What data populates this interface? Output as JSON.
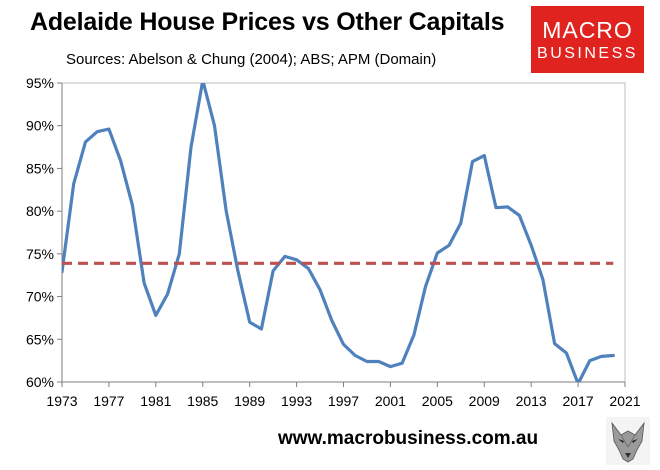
{
  "title": "Adelaide House Prices vs Other Capitals",
  "subtitle": "Sources: Abelson & Chung (2004); ABS; APM (Domain)",
  "logo": {
    "line1": "MACRO",
    "line2": "BUSINESS",
    "color": "#e1231f"
  },
  "footer": {
    "url": "www.macrobusiness.com.au"
  },
  "colors": {
    "series": "#4f81bd",
    "average": "#c0504d",
    "axis": "#7f7f7f"
  },
  "chart_data": {
    "type": "line",
    "title": "Adelaide House Prices vs Other Capitals",
    "xlabel": "",
    "ylabel": "",
    "xlim": [
      1973,
      2021
    ],
    "ylim": [
      0.6,
      0.95
    ],
    "x_ticks": [
      1973,
      1977,
      1981,
      1985,
      1989,
      1993,
      1997,
      2001,
      2005,
      2009,
      2013,
      2017,
      2021
    ],
    "y_ticks": [
      0.6,
      0.65,
      0.7,
      0.75,
      0.8,
      0.85,
      0.9,
      0.95
    ],
    "x_tick_labels": [
      "1973",
      "1977",
      "1981",
      "1985",
      "1989",
      "1993",
      "1997",
      "2001",
      "2005",
      "2009",
      "2013",
      "2017",
      "2021"
    ],
    "y_tick_labels": [
      "60%",
      "65%",
      "70%",
      "75%",
      "80%",
      "85%",
      "90%",
      "95%"
    ],
    "grid": false,
    "legend": "none",
    "series": [
      {
        "style": "solid",
        "x": [
          1973,
          1974,
          1975,
          1976,
          1977,
          1978,
          1979,
          1980,
          1981,
          1982,
          1983,
          1984,
          1985,
          1986,
          1987,
          1988,
          1989,
          1990,
          1991,
          1992,
          1993,
          1994,
          1995,
          1996,
          1997,
          1998,
          1999,
          2000,
          2001,
          2002,
          2003,
          2004,
          2005,
          2006,
          2007,
          2008,
          2009,
          2010,
          2011,
          2012,
          2013,
          2014,
          2015,
          2016,
          2017,
          2018,
          2019,
          2020
        ],
        "values": [
          0.729,
          0.832,
          0.881,
          0.893,
          0.896,
          0.859,
          0.807,
          0.716,
          0.678,
          0.703,
          0.75,
          0.875,
          0.953,
          0.9,
          0.8,
          0.73,
          0.67,
          0.662,
          0.73,
          0.747,
          0.743,
          0.733,
          0.708,
          0.672,
          0.644,
          0.631,
          0.624,
          0.624,
          0.618,
          0.622,
          0.655,
          0.712,
          0.751,
          0.76,
          0.786,
          0.858,
          0.865,
          0.804,
          0.805,
          0.795,
          0.76,
          0.72,
          0.645,
          0.634,
          0.598,
          0.625,
          0.63,
          0.631
        ]
      },
      {
        "style": "dashed",
        "x": [
          1973,
          2020
        ],
        "values": [
          0.739,
          0.739
        ]
      }
    ]
  }
}
